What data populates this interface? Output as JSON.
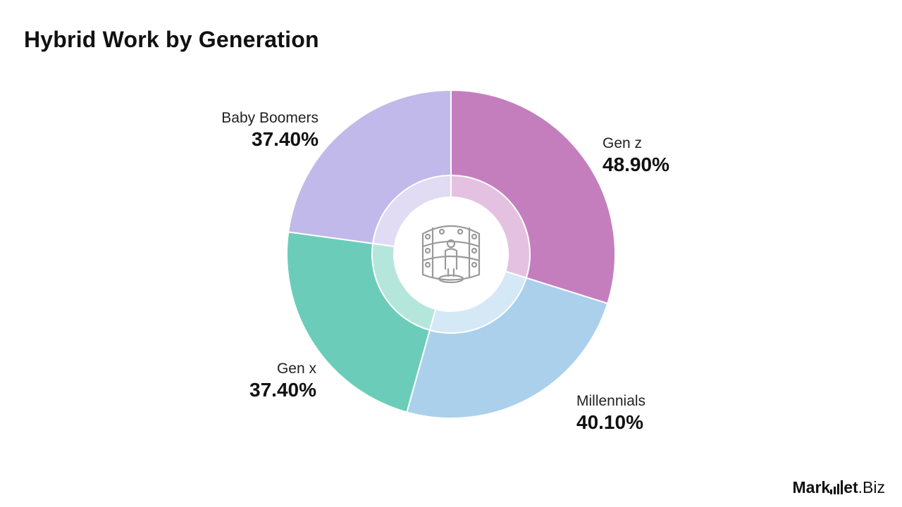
{
  "title": "Hybrid Work by Generation",
  "brand": {
    "name_part1": "Mark",
    "name_part2": "et",
    "name_part3": ".Biz"
  },
  "center_icon": "audience-theater-icon",
  "chart_data": {
    "type": "pie",
    "title": "Hybrid Work by Generation",
    "categories": [
      "Gen z",
      "Millennials",
      "Gen x",
      "Baby Boomers"
    ],
    "values": [
      48.9,
      40.1,
      37.4,
      37.4
    ],
    "value_labels": [
      "48.90%",
      "40.10%",
      "37.40%",
      "37.40%"
    ],
    "colors": [
      "#C47EBE",
      "#AAD0EC",
      "#6BCDB9",
      "#C1B9E9"
    ],
    "inner_colors": [
      "#E4C1E1",
      "#D5E8F6",
      "#B5E6DC",
      "#E1DCF4"
    ],
    "donut": true,
    "legend": "none"
  }
}
